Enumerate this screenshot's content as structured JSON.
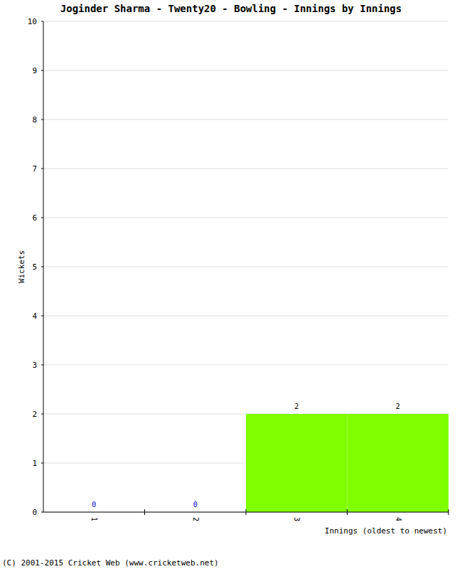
{
  "chart_data": {
    "type": "bar",
    "title": "Joginder Sharma - Twenty20 - Bowling - Innings by Innings",
    "x_label": "Innings (oldest to newest)",
    "y_label": "Wickets",
    "annotations": [
      "(C) 2001-2015 Cricket Web (www.cricketweb.net)"
    ],
    "categories": [
      "1",
      "2",
      "3",
      "4"
    ],
    "values": [
      0,
      0,
      2,
      2
    ],
    "color": "#80ff00",
    "ylim": [
      0,
      10
    ],
    "yticks": [
      0,
      1,
      2,
      3,
      4,
      5,
      6,
      7,
      8,
      9,
      10
    ],
    "grid": true,
    "data_labels": true
  }
}
